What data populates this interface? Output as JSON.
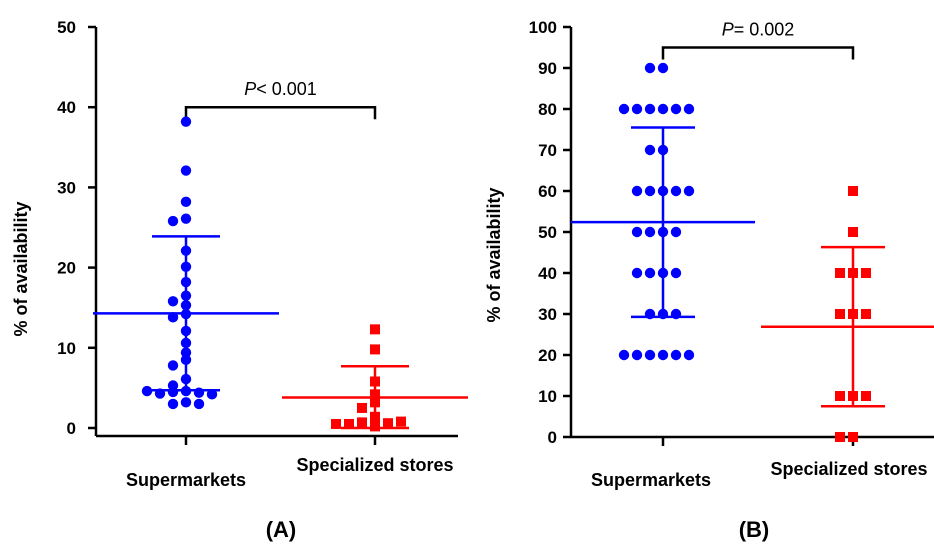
{
  "chart_data": [
    {
      "type": "scatter",
      "panel_label": "(A)",
      "ylabel": "% of availability",
      "ylim": [
        0,
        50
      ],
      "yticks": [
        "0",
        "10",
        "20",
        "30",
        "40",
        "50"
      ],
      "categories": [
        "Supermarkets",
        "Specialized stores"
      ],
      "grid": false,
      "significance": {
        "prefix": "P",
        "text": "< 0.001",
        "between": [
          "Supermarkets",
          "Specialized stores"
        ],
        "level": 40
      },
      "series": [
        {
          "category": "Supermarkets",
          "marker": "circle",
          "color": "#0000ff",
          "values": [
            38.2,
            32.1,
            28.2,
            26.1,
            25.8,
            22.1,
            20.1,
            18.2,
            16.5,
            15.8,
            15.3,
            14.2,
            13.8,
            12.1,
            10.6,
            9.4,
            8.5,
            7.8,
            6.1,
            5.3,
            4.6,
            4.5,
            4.4,
            4.3,
            4.2,
            4.6,
            3.2,
            3.0,
            3.0
          ],
          "mean": 14.3,
          "sd_upper": 23.9,
          "sd_lower": 4.7
        },
        {
          "category": "Specialized stores",
          "marker": "square",
          "color": "#ff0000",
          "values": [
            12.3,
            9.8,
            5.8,
            4.2,
            3.2,
            2.5,
            1.4,
            0.7,
            0.6,
            0.5,
            0.8,
            0.5,
            0.2
          ],
          "mean": 3.8,
          "sd_upper": 7.7,
          "sd_lower": 0
        }
      ]
    },
    {
      "type": "scatter",
      "panel_label": "(B)",
      "ylabel": "% of availability",
      "ylim": [
        0,
        100
      ],
      "yticks": [
        "0",
        "10",
        "20",
        "30",
        "40",
        "50",
        "60",
        "70",
        "80",
        "90",
        "100"
      ],
      "categories": [
        "Supermarkets",
        "Specialized stores"
      ],
      "grid": false,
      "significance": {
        "prefix": "P",
        "text": "= 0.002",
        "between": [
          "Supermarkets",
          "Specialized stores"
        ],
        "level": 95
      },
      "series": [
        {
          "category": "Supermarkets",
          "marker": "circle",
          "color": "#0000ff",
          "values": [
            90,
            90,
            80,
            80,
            80,
            80,
            80,
            80,
            70,
            70,
            60,
            60,
            60,
            60,
            60,
            50,
            50,
            50,
            50,
            40,
            40,
            40,
            40,
            30,
            30,
            30,
            20,
            20,
            20,
            20,
            20,
            20
          ],
          "mean": 52.4,
          "sd_upper": 75.5,
          "sd_lower": 29.3
        },
        {
          "category": "Specialized stores",
          "marker": "square",
          "color": "#ff0000",
          "values": [
            60,
            50,
            40,
            40,
            40,
            30,
            30,
            30,
            10,
            10,
            10,
            0,
            0
          ],
          "mean": 26.9,
          "sd_upper": 46.3,
          "sd_lower": 7.5
        }
      ]
    }
  ]
}
